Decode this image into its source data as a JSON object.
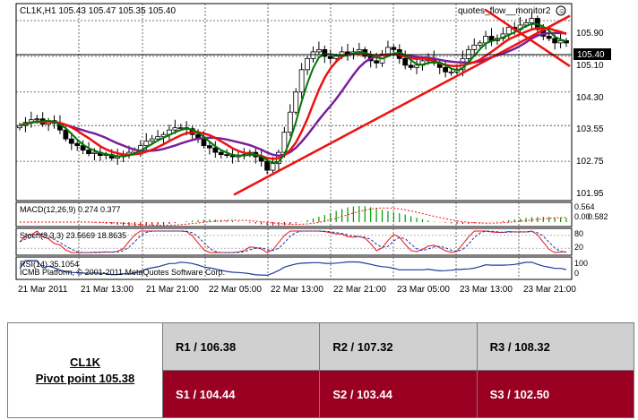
{
  "terminal": {
    "header": "CL1K,H1  105.43 105.47 105.35 105.40",
    "ea_label": "quotes_flow__monitor2",
    "price_axis": [
      "105.90",
      "105.10",
      "104.30",
      "103.55",
      "102.75",
      "101.95"
    ],
    "price_tag": "105.40",
    "macd_label": "MACD(12,26,9) 0.274 0.377",
    "macd_axis": [
      "0.564",
      "0.00",
      "0.582"
    ],
    "stoch_label": "Stoch(8,3,3) 23.5669 18.8635",
    "stoch_axis": [
      "80",
      "20"
    ],
    "rsi_label": "RSI(14) 35.1054",
    "rsi_axis": [
      "100",
      "0"
    ],
    "watermark": "ICMB Platform, © 2001-2011 MetaQuotes Software Corp.",
    "time_axis": [
      "21 Mar 2011",
      "21 Mar 13:00",
      "21 Mar 21:00",
      "22 Mar 05:00",
      "22 Mar 13:00",
      "22 Mar 21:00",
      "23 Mar 05:00",
      "23 Mar 13:00",
      "23 Mar 21:00"
    ],
    "colors": {
      "fast_ma": "#007700",
      "mid_ma": "#ee1111",
      "slow_ma": "#7a1f9a",
      "trendline": "#ee1111",
      "candle_up": "#ffffff",
      "candle_down": "#000000"
    }
  },
  "pivot": {
    "symbol": "CL1K",
    "pivot_point": "Pivot point 105.38",
    "r1": "R1 / 106.38",
    "r2": "R2  / 107.32",
    "r3": "R3 / 108.32",
    "s1": "S1 / 104.44",
    "s2": "S2 /  103.44",
    "s3": "S3 /  102.50"
  },
  "chart_data": {
    "type": "candlestick",
    "symbol": "CL1K",
    "timeframe": "H1",
    "ylim": [
      101.95,
      106.2
    ],
    "close": [
      103.55,
      103.62,
      103.68,
      103.7,
      103.58,
      103.66,
      103.6,
      103.45,
      103.25,
      103.15,
      103.1,
      103,
      102.92,
      102.95,
      102.88,
      102.9,
      102.82,
      102.85,
      102.9,
      102.95,
      103,
      103.1,
      103.2,
      103.25,
      103.3,
      103.35,
      103.45,
      103.5,
      103.5,
      103.48,
      103.35,
      103.25,
      103.1,
      103.05,
      102.95,
      102.9,
      102.88,
      102.85,
      102.88,
      102.9,
      102.95,
      102.85,
      102.75,
      102.55,
      102.7,
      102.95,
      103.4,
      103.85,
      104.3,
      104.8,
      105.05,
      105.2,
      105.25,
      105.1,
      105.05,
      105.1,
      105.2,
      105.15,
      105.2,
      105.25,
      105.1,
      105,
      104.95,
      105.15,
      105.3,
      105.25,
      105.05,
      104.9,
      104.85,
      104.9,
      105,
      105.05,
      104.95,
      104.85,
      104.75,
      104.75,
      104.8,
      105.05,
      105.25,
      105.35,
      105.4,
      105.55,
      105.45,
      105.5,
      105.6,
      105.75,
      105.7,
      105.8,
      105.85,
      105.95,
      105.7,
      105.55,
      105.5,
      105.4,
      105.45,
      105.4
    ],
    "indicators": [
      "fast MA (green)",
      "mid MA (red)",
      "slow MA (purple)",
      "MACD(12,26,9)",
      "Stoch(8,3,3)",
      "RSI(14)"
    ],
    "trendlines": [
      {
        "from": [
          "22 Mar 05:00",
          102.0
        ],
        "to": [
          "23 Mar 21:00",
          105.75
        ]
      },
      {
        "from": [
          "23 Mar 13:00",
          106.15
        ],
        "to": [
          "23 Mar 21:00",
          105.2
        ]
      }
    ]
  }
}
